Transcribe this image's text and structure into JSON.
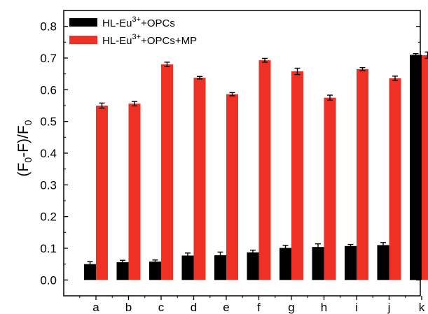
{
  "chart_data": {
    "type": "bar",
    "ylabel": {
      "base": "(F",
      "sub1": "0",
      "mid": "-F)/F",
      "sub2": "0"
    },
    "xlabel": "",
    "ylim": [
      -0.05,
      0.85
    ],
    "yticks": [
      "0.0",
      "0.1",
      "0.2",
      "0.3",
      "0.4",
      "0.5",
      "0.6",
      "0.7",
      "0.8"
    ],
    "categories": [
      "a",
      "b",
      "c",
      "d",
      "e",
      "f",
      "g",
      "h",
      "i",
      "j",
      "k"
    ],
    "legend_position": "top-left",
    "series": [
      {
        "legend": {
          "prefix": "HL-Eu",
          "sup": "3+",
          "suffix": "+OPCs"
        },
        "color": "#000000",
        "values": [
          0.05,
          0.056,
          0.058,
          0.077,
          0.078,
          0.087,
          0.101,
          0.104,
          0.107,
          0.11,
          0.71
        ],
        "errors": [
          0.008,
          0.006,
          0.005,
          0.008,
          0.01,
          0.007,
          0.008,
          0.01,
          0.005,
          0.008,
          0.004
        ]
      },
      {
        "legend": {
          "prefix": "HL-Eu",
          "sup": "3+",
          "suffix": "+OPCs+MP"
        },
        "color": "#ee3124",
        "values": [
          0.55,
          0.556,
          0.68,
          0.638,
          0.586,
          0.693,
          0.658,
          0.575,
          0.665,
          0.636,
          0.709
        ],
        "errors": [
          0.008,
          0.007,
          0.007,
          0.004,
          0.005,
          0.006,
          0.01,
          0.008,
          0.005,
          0.007,
          0.01
        ]
      }
    ]
  }
}
